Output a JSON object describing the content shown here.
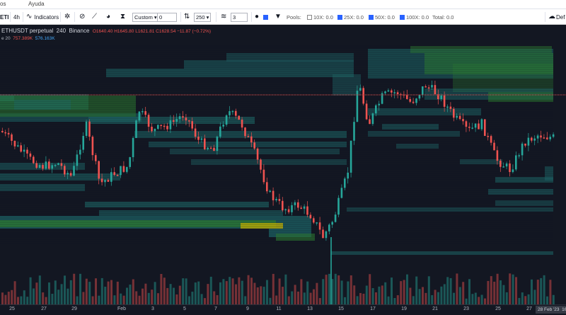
{
  "menu": {
    "item1": "os",
    "item2": "Ayuda"
  },
  "toolbar": {
    "symbol": "ETI",
    "interval": "4h",
    "indicators_label": "Indicators",
    "custom_select": "Custom",
    "custom_value": "0",
    "levels_select": "250",
    "count_value": "3",
    "pools_label": "Pools:",
    "pool_10x": "10X: 0.0",
    "pool_25x": "25X: 0.0",
    "pool_50x": "50X: 0.0",
    "pool_100x": "100X: 0.0",
    "total": "Total: 0.0",
    "default_label": "Def"
  },
  "legend": {
    "symbol": "ETHUSDT perpetual",
    "interval": "240",
    "exchange": "Binance",
    "ohlc": "O1640.40  H1645.80  L1621.81  C1628.54  −11.87 (−0.72%)",
    "volume_label": "e 20",
    "vol_a": "757.389K",
    "vol_b": "576.163K"
  },
  "xaxis": {
    "ticks": [
      "25",
      "27",
      "29",
      "Feb",
      "3",
      "5",
      "7",
      "9",
      "11",
      "13",
      "15",
      "17",
      "19",
      "21",
      "23",
      "25",
      "27"
    ],
    "cursor": "28 Feb '23",
    "cursor_time": "16"
  },
  "colors": {
    "background": "#131722",
    "up": "#26a69a",
    "down": "#ef5350",
    "heat_teal": "#1e6b6b",
    "heat_green": "#2e7d32",
    "heat_yellow": "#c8b400"
  }
}
